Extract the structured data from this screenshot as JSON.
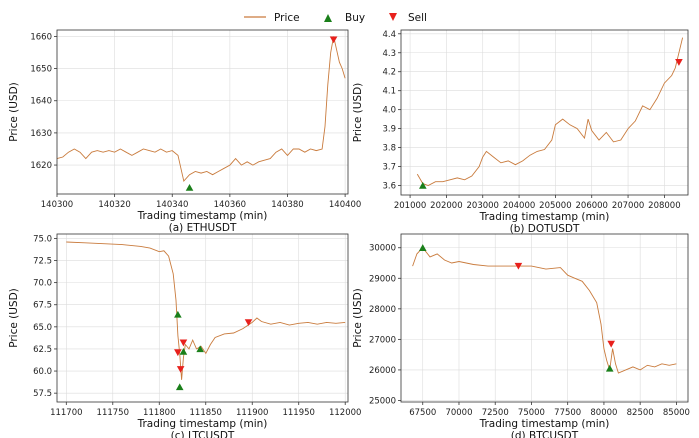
{
  "legend": {
    "price": "Price",
    "buy": "Buy",
    "sell": "Sell"
  },
  "colors": {
    "price": "#c97b3d",
    "buy": "#1a7f1a",
    "sell": "#e8201c",
    "grid": "#dcdcdc"
  },
  "chart_data": [
    {
      "type": "line",
      "id": "eth",
      "caption": "(a) ETHUSDT",
      "xlabel": "Trading timestamp (min)",
      "ylabel": "Price (USD)",
      "xlim": [
        140300,
        140401
      ],
      "ylim": [
        1611,
        1662
      ],
      "xticks": [
        140300,
        140320,
        140340,
        140360,
        140380,
        140400
      ],
      "yticks": [
        1620,
        1630,
        1640,
        1650,
        1660
      ],
      "x": [
        140300,
        140302,
        140304,
        140306,
        140308,
        140310,
        140312,
        140314,
        140316,
        140318,
        140320,
        140322,
        140324,
        140326,
        140328,
        140330,
        140332,
        140334,
        140336,
        140338,
        140340,
        140342,
        140343,
        140344,
        140346,
        140348,
        140350,
        140352,
        140354,
        140356,
        140358,
        140360,
        140362,
        140364,
        140366,
        140368,
        140370,
        140372,
        140374,
        140376,
        140378,
        140380,
        140382,
        140384,
        140386,
        140388,
        140390,
        140392,
        140393,
        140394,
        140395,
        140396,
        140397,
        140398,
        140399,
        140400
      ],
      "y": [
        1622,
        1622.5,
        1624,
        1625,
        1624,
        1622,
        1624,
        1624.5,
        1624,
        1624.5,
        1624,
        1625,
        1624,
        1623,
        1624,
        1625,
        1624.5,
        1624,
        1625,
        1624,
        1624.5,
        1623,
        1619,
        1615,
        1617,
        1618,
        1617.5,
        1618,
        1617,
        1618,
        1619,
        1620,
        1622,
        1620,
        1621,
        1620,
        1621,
        1621.5,
        1622,
        1624,
        1625,
        1623,
        1625,
        1625,
        1624,
        1625,
        1624.5,
        1625,
        1632,
        1645,
        1655,
        1660,
        1656,
        1652,
        1650,
        1647
      ],
      "buy": [
        {
          "x": 140346,
          "y": 1613
        }
      ],
      "sell": [
        {
          "x": 140396,
          "y": 1659
        }
      ]
    },
    {
      "type": "line",
      "id": "dot",
      "caption": "(b) DOTUSDT",
      "xlabel": "Trading timestamp (min)",
      "ylabel": "Price (USD)",
      "xlim": [
        200750,
        208650
      ],
      "ylim": [
        3.55,
        4.42
      ],
      "xticks": [
        201000,
        202000,
        203000,
        204000,
        205000,
        206000,
        207000,
        208000
      ],
      "yticks": [
        3.6,
        3.7,
        3.8,
        3.9,
        4.0,
        4.1,
        4.2,
        4.3,
        4.4
      ],
      "x": [
        201200,
        201350,
        201500,
        201700,
        201900,
        202100,
        202300,
        202500,
        202700,
        202900,
        203000,
        203100,
        203300,
        203500,
        203700,
        203900,
        204100,
        204300,
        204500,
        204700,
        204900,
        205000,
        205200,
        205400,
        205600,
        205800,
        205900,
        206000,
        206200,
        206400,
        206600,
        206800,
        207000,
        207200,
        207400,
        207600,
        207800,
        208000,
        208200,
        208300,
        208400,
        208500
      ],
      "y": [
        3.66,
        3.61,
        3.6,
        3.62,
        3.62,
        3.63,
        3.64,
        3.63,
        3.65,
        3.7,
        3.75,
        3.78,
        3.75,
        3.72,
        3.73,
        3.71,
        3.73,
        3.76,
        3.78,
        3.79,
        3.84,
        3.92,
        3.95,
        3.92,
        3.9,
        3.85,
        3.95,
        3.89,
        3.84,
        3.88,
        3.83,
        3.84,
        3.9,
        3.94,
        4.02,
        4.0,
        4.06,
        4.14,
        4.18,
        4.22,
        4.3,
        4.38
      ],
      "buy": [
        {
          "x": 201350,
          "y": 3.6
        }
      ],
      "sell": [
        {
          "x": 208400,
          "y": 4.25
        }
      ]
    },
    {
      "type": "line",
      "id": "ltc",
      "caption": "(c) LTCUSDT",
      "xlabel": "Trading timestamp (min)",
      "ylabel": "Price (USD)",
      "xlim": [
        111690,
        112003
      ],
      "ylim": [
        56.5,
        75.5
      ],
      "xticks": [
        111700,
        111750,
        111800,
        111850,
        111900,
        111950,
        112000
      ],
      "yticks": [
        57.5,
        60.0,
        62.5,
        65.0,
        67.5,
        70.0,
        72.5,
        75.0
      ],
      "x": [
        111700,
        111720,
        111740,
        111760,
        111780,
        111790,
        111800,
        111805,
        111810,
        111815,
        111818,
        111820,
        111822,
        111824,
        111826,
        111828,
        111832,
        111836,
        111840,
        111845,
        111850,
        111855,
        111860,
        111870,
        111880,
        111890,
        111900,
        111905,
        111910,
        111920,
        111930,
        111940,
        111950,
        111960,
        111970,
        111980,
        111990,
        112000
      ],
      "y": [
        74.6,
        74.5,
        74.4,
        74.3,
        74.1,
        73.9,
        73.5,
        73.6,
        73.0,
        71.0,
        68.0,
        64.0,
        62.0,
        59.0,
        61.5,
        63.0,
        62.5,
        63.5,
        62.5,
        62.8,
        62.0,
        63.0,
        63.8,
        64.2,
        64.3,
        64.8,
        65.5,
        66.0,
        65.6,
        65.3,
        65.5,
        65.2,
        65.4,
        65.5,
        65.3,
        65.5,
        65.4,
        65.5
      ],
      "buy": [
        {
          "x": 111820,
          "y": 66.4
        },
        {
          "x": 111822,
          "y": 58.2
        },
        {
          "x": 111826,
          "y": 62.2
        },
        {
          "x": 111844,
          "y": 62.5
        }
      ],
      "sell": [
        {
          "x": 111820,
          "y": 62.1
        },
        {
          "x": 111823,
          "y": 60.2
        },
        {
          "x": 111826,
          "y": 63.2
        },
        {
          "x": 111896,
          "y": 65.5
        }
      ]
    },
    {
      "type": "line",
      "id": "btc",
      "caption": "(d) BTCUSDT",
      "xlabel": "Trading timestamp (min)",
      "ylabel": "Price (USD)",
      "xlim": [
        66000,
        85800
      ],
      "ylim": [
        24950,
        30450
      ],
      "xticks": [
        67500,
        70000,
        72500,
        75000,
        77500,
        80000,
        82500,
        85000
      ],
      "yticks": [
        25000,
        26000,
        27000,
        28000,
        29000,
        30000
      ],
      "x": [
        66800,
        67100,
        67500,
        68000,
        68500,
        69000,
        69500,
        70000,
        71000,
        72000,
        73000,
        74000,
        75000,
        76000,
        77000,
        77500,
        78000,
        78500,
        79000,
        79500,
        79800,
        80000,
        80200,
        80400,
        80600,
        80800,
        81000,
        81500,
        82000,
        82500,
        83000,
        83500,
        84000,
        84500,
        85000
      ],
      "y": [
        29400,
        29800,
        30000,
        29700,
        29800,
        29600,
        29500,
        29550,
        29450,
        29400,
        29400,
        29400,
        29400,
        29300,
        29350,
        29100,
        29000,
        28900,
        28600,
        28200,
        27500,
        26700,
        26300,
        26000,
        26700,
        26200,
        25900,
        26000,
        26100,
        26000,
        26150,
        26100,
        26200,
        26150,
        26200
      ],
      "buy": [
        {
          "x": 67500,
          "y": 30000
        },
        {
          "x": 80400,
          "y": 26050
        }
      ],
      "sell": [
        {
          "x": 74100,
          "y": 29400
        },
        {
          "x": 80500,
          "y": 26850
        }
      ]
    }
  ]
}
